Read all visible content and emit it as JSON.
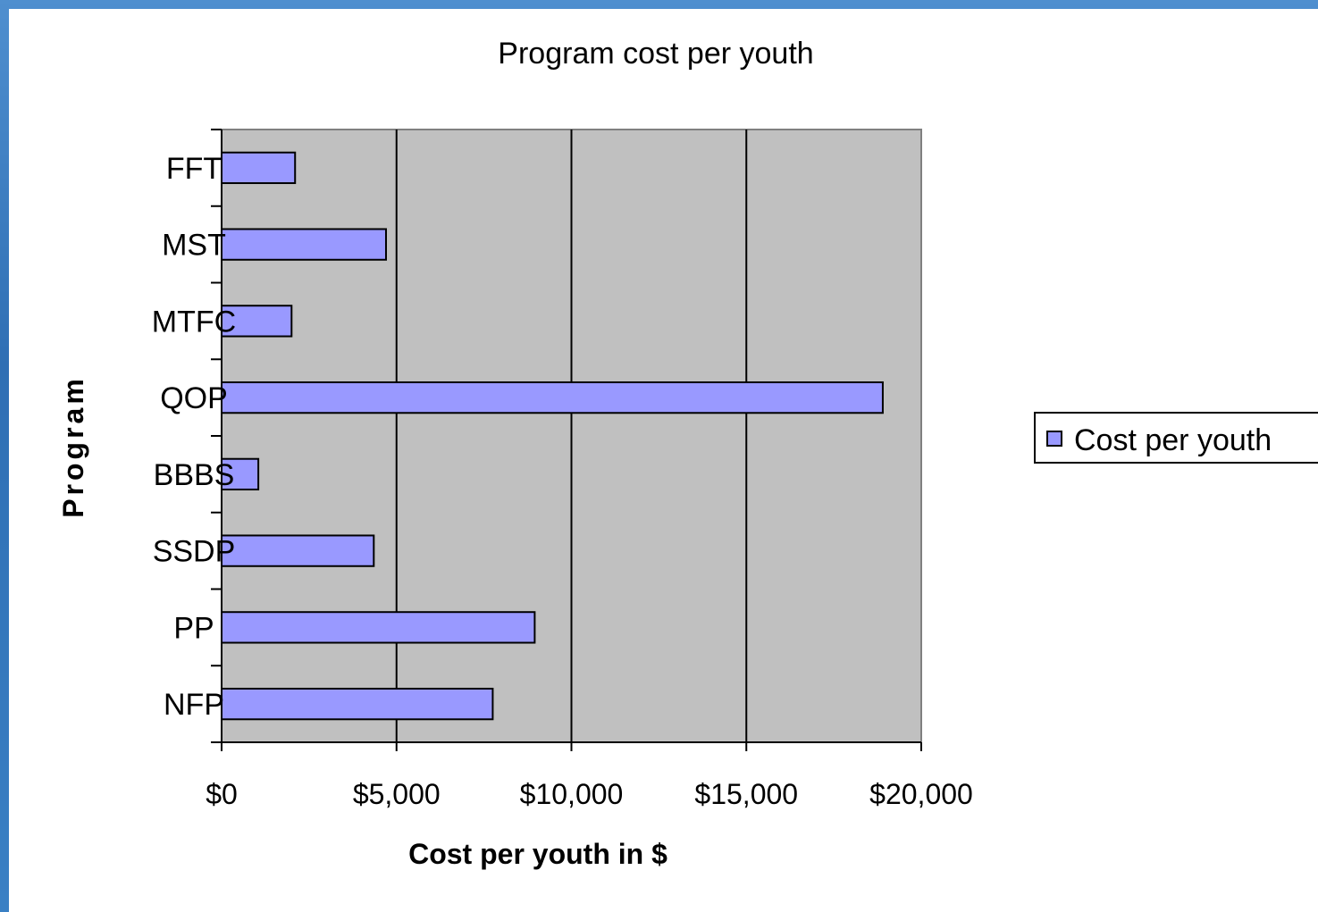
{
  "chart_data": {
    "type": "bar",
    "orientation": "horizontal",
    "title": "Program cost per youth",
    "xlabel": "Cost per youth in $",
    "ylabel": "Program",
    "categories": [
      "FFT",
      "MST",
      "MTFC",
      "QOP",
      "BBBS",
      "SSDP",
      "PP",
      "NFP"
    ],
    "series": [
      {
        "name": "Cost per youth",
        "values": [
          2100,
          4700,
          2000,
          18900,
          1050,
          4350,
          8950,
          7750
        ],
        "color": "#9999ff"
      }
    ],
    "xlim": [
      0,
      20000
    ],
    "xticks": [
      0,
      5000,
      10000,
      15000,
      20000
    ],
    "xtick_labels": [
      "$0",
      "$5,000",
      "$10,000",
      "$15,000",
      "$20,000"
    ],
    "grid": "vertical-major",
    "legend": "right",
    "plot_background": "#c0c0c0"
  }
}
